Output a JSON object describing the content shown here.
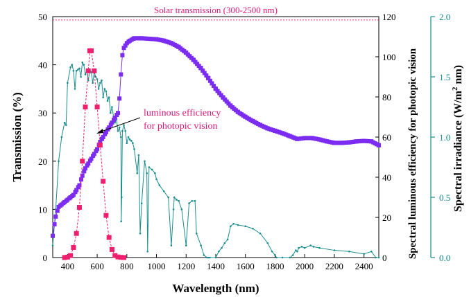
{
  "chart_data": {
    "type": "scatter",
    "xlabel": "Wavelength (nm)",
    "ylabel_left": "Transmission (%)",
    "ylabel_right1": "Spectral luminous efficiency for photopic vision",
    "ylabel_right2": "Spectral irradiance (W/m² nm)",
    "ylabel_right2_parts": [
      "Spectral irradiance (W/m",
      "2",
      " nm)"
    ],
    "annotation_solar": "Solar transmission (300-2500 nm)",
    "annotation_solar_value": 49.3,
    "annotation_luminous_line1": "luminous efficiency",
    "annotation_luminous_line2": "for photopic vision",
    "xlim": [
      300,
      2500
    ],
    "xticks": [
      400,
      600,
      800,
      1000,
      1200,
      1400,
      1600,
      1800,
      2000,
      2200,
      2400
    ],
    "ylim_left": [
      0,
      50
    ],
    "yticks_left": [
      0,
      10,
      20,
      30,
      40,
      50
    ],
    "ylim_right1": [
      0,
      120
    ],
    "yticks_right1": [
      0,
      20,
      40,
      60,
      80,
      100,
      120
    ],
    "ylim_right2": [
      0.0,
      2.0
    ],
    "yticks_right2": [
      "0.0",
      "0.5",
      "1.0",
      "1.5",
      "2.0"
    ],
    "colors": {
      "transmission": "#7b2cf0",
      "luminous": "#ee1f6e",
      "irradiance": "#1a8c8c",
      "solar_line": "#ee1f6e",
      "annotation_text": "#e0187a"
    },
    "series": [
      {
        "axis": "left",
        "marker": "square",
        "x": [
          300,
          320,
          340,
          360,
          380,
          400,
          420,
          440,
          460,
          480,
          500,
          520,
          540,
          560,
          580,
          600,
          620,
          640,
          660,
          680,
          700,
          720,
          740,
          750,
          760,
          770,
          780,
          790,
          800,
          820,
          850,
          900,
          950,
          1000,
          1050,
          1100,
          1150,
          1200,
          1250,
          1300,
          1350,
          1400,
          1450,
          1500,
          1550,
          1600,
          1650,
          1700,
          1750,
          1800,
          1850,
          1900,
          1950,
          2000,
          2050,
          2100,
          2150,
          2200,
          2250,
          2300,
          2350,
          2400,
          2450,
          2500
        ],
        "y": [
          4.5,
          8.5,
          10.5,
          11,
          11.5,
          12,
          12.5,
          13,
          14,
          15,
          17,
          18.5,
          19.5,
          20.5,
          21.5,
          22.5,
          24,
          25,
          26,
          27,
          28,
          29,
          30,
          33,
          38,
          42,
          43.5,
          44,
          44.5,
          45,
          45.5,
          45.5,
          45.4,
          45.3,
          45,
          44.5,
          43.7,
          42.5,
          41,
          39.3,
          37.2,
          35,
          33.2,
          31.5,
          30.2,
          29.2,
          28.3,
          27.5,
          26.8,
          26.3,
          25.8,
          25.2,
          24.6,
          24.8,
          24.8,
          24.5,
          24.1,
          23.8,
          23.8,
          23.9,
          24.1,
          24.2,
          24.1,
          23.3
        ]
      },
      {
        "axis": "right1",
        "marker": "square",
        "x": [
          380,
          400,
          420,
          440,
          460,
          480,
          500,
          520,
          540,
          550,
          560,
          580,
          600,
          620,
          640,
          660,
          680,
          700,
          720,
          740,
          760,
          780
        ],
        "y": [
          0,
          0.2,
          1,
          5,
          12,
          25,
          48,
          75,
          93,
          103,
          103,
          93,
          75,
          56,
          38,
          21,
          10,
          4,
          1,
          0.3,
          0.1,
          0
        ]
      },
      {
        "axis": "right2",
        "marker": "dot",
        "x": [
          300,
          320,
          340,
          360,
          380,
          390,
          400,
          420,
          430,
          440,
          450,
          460,
          470,
          480,
          490,
          500,
          510,
          520,
          530,
          540,
          550,
          560,
          570,
          580,
          590,
          600,
          610,
          620,
          630,
          640,
          650,
          660,
          670,
          680,
          690,
          700,
          710,
          720,
          730,
          740,
          750,
          760,
          762,
          765,
          770,
          780,
          790,
          800,
          810,
          820,
          830,
          840,
          850,
          870,
          880,
          890,
          900,
          920,
          935,
          940,
          950,
          970,
          990,
          1000,
          1020,
          1050,
          1080,
          1100,
          1115,
          1120,
          1135,
          1150,
          1170,
          1200,
          1220,
          1240,
          1260,
          1270,
          1300,
          1320,
          1340,
          1350,
          1360,
          1400,
          1420,
          1440,
          1460,
          1480,
          1500,
          1520,
          1550,
          1600,
          1650,
          1700,
          1750,
          1780,
          1800,
          1810,
          1850,
          1900,
          1920,
          1940,
          1950,
          1960,
          1980,
          2000,
          2040,
          2060,
          2100,
          2200,
          2300,
          2400,
          2450,
          2480,
          2500
        ],
        "y": [
          0.1,
          0.4,
          0.8,
          1.0,
          1.12,
          1.1,
          1.45,
          1.58,
          1.6,
          1.55,
          1.4,
          1.55,
          1.56,
          1.57,
          1.5,
          1.62,
          1.6,
          1.52,
          1.56,
          1.47,
          1.55,
          1.54,
          1.45,
          1.54,
          1.5,
          1.48,
          1.4,
          1.45,
          1.47,
          1.33,
          1.4,
          1.38,
          1.3,
          1.33,
          1.2,
          1.25,
          1.17,
          1.12,
          1.15,
          1.05,
          1.08,
          1.0,
          0.3,
          0.5,
          1.05,
          1.1,
          1.05,
          0.95,
          1.0,
          0.98,
          0.97,
          0.95,
          0.9,
          0.7,
          0.85,
          0.2,
          0.45,
          0.8,
          0.7,
          0.05,
          0.75,
          0.73,
          0.7,
          0.65,
          0.6,
          0.55,
          0.5,
          0.1,
          0.4,
          0.5,
          0.48,
          0.47,
          0.4,
          0.1,
          0.45,
          0.47,
          0.47,
          0.2,
          0.1,
          0.02,
          0.0,
          0.0,
          0.0,
          0.0,
          0.05,
          0.08,
          0.12,
          0.15,
          0.26,
          0.28,
          0.27,
          0.26,
          0.24,
          0.2,
          0.12,
          0.05,
          0.02,
          0.0,
          0.0,
          0.0,
          0.02,
          0.06,
          0.05,
          0.08,
          0.09,
          0.08,
          0.1,
          0.09,
          0.08,
          0.06,
          0.05,
          0.03,
          0.05,
          0.0,
          0.0
        ]
      }
    ]
  }
}
